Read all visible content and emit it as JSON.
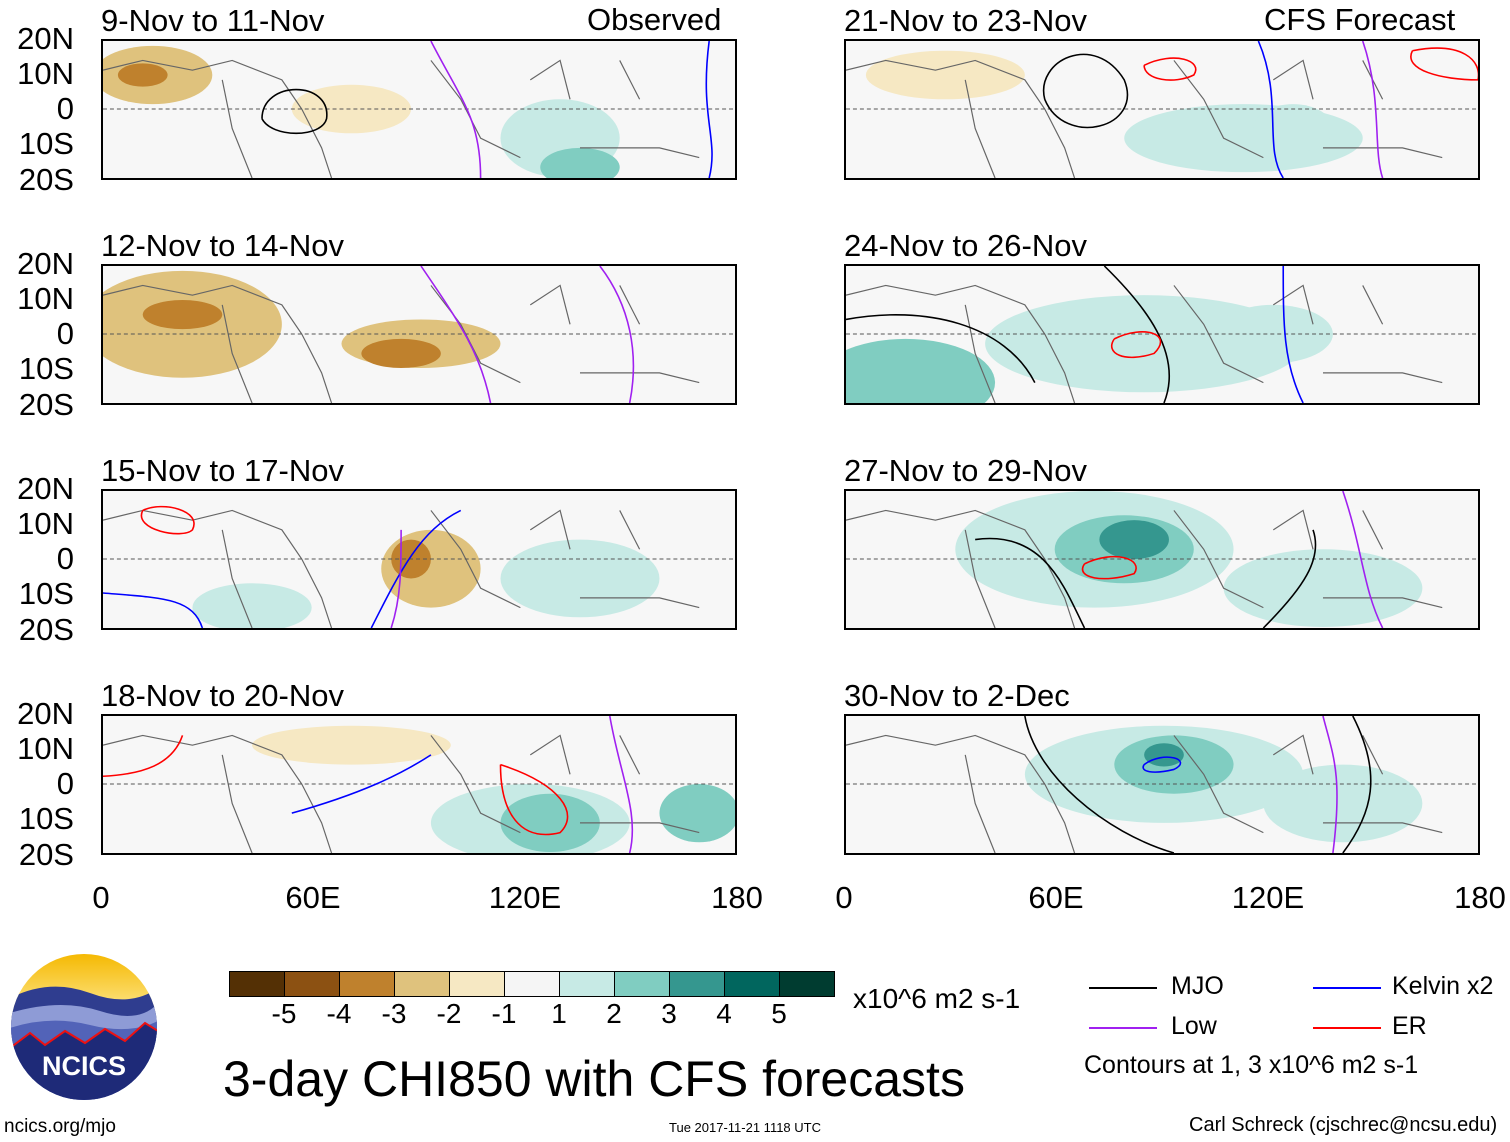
{
  "left_header_right": "Observed",
  "right_header_right": "CFS Forecast",
  "panels_left": [
    "9-Nov to 11-Nov",
    "12-Nov to 14-Nov",
    "15-Nov to 17-Nov",
    "18-Nov to 20-Nov"
  ],
  "panels_right": [
    "21-Nov to 23-Nov",
    "24-Nov to 26-Nov",
    "27-Nov to 29-Nov",
    "30-Nov to 2-Dec"
  ],
  "lat_labels": [
    "20N",
    "10N",
    "0",
    "10S",
    "20S"
  ],
  "lon_labels": [
    "0",
    "60E",
    "120E",
    "180"
  ],
  "colorbar": {
    "colors": [
      "#543005",
      "#8c5112",
      "#bf812d",
      "#dfc27d",
      "#f6e8c3",
      "#f5f5f5",
      "#c7eae5",
      "#80cdc1",
      "#35978f",
      "#01665e",
      "#003c30"
    ],
    "ticks": [
      "-5",
      "-4",
      "-3",
      "-2",
      "-1",
      "1",
      "2",
      "3",
      "4",
      "5"
    ],
    "units": "x10^6 m2 s-1"
  },
  "legend": {
    "items": [
      {
        "label": "MJO",
        "color": "#000000"
      },
      {
        "label": "Kelvin x2",
        "color": "#0000ff"
      },
      {
        "label": "Low",
        "color": "#a020f0"
      },
      {
        "label": "ER",
        "color": "#ff0000"
      }
    ],
    "note": "Contours at 1, 3 x10^6 m2 s-1"
  },
  "title": "3-day CHI850 with CFS forecasts",
  "logo_text": "NCICS",
  "footer": {
    "left": "ncics.org/mjo",
    "center": "Tue 2017-11-21 1118 UTC",
    "right": "Carl Schreck (cjschrec@ncsu.edu)"
  }
}
